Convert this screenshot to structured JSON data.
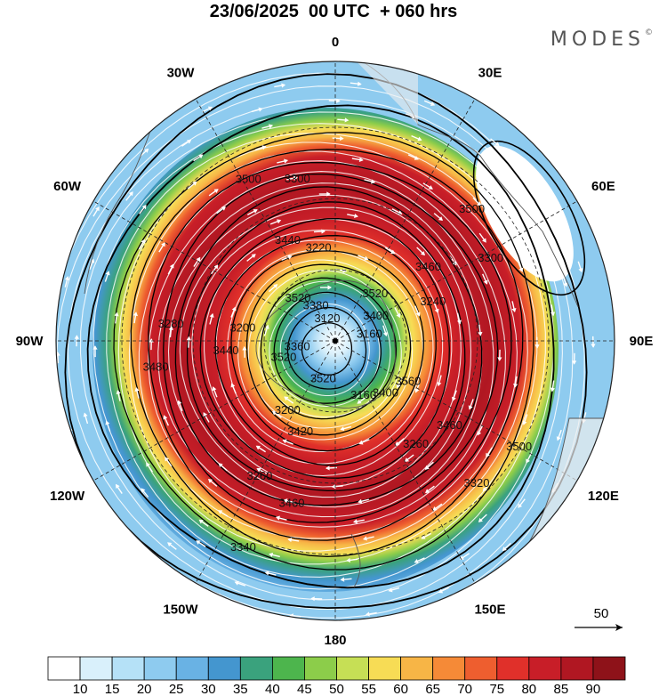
{
  "header": {
    "title": "23/06/2025  00 UTC  + 060 hrs",
    "brand": "MODES",
    "brand_mark": "©"
  },
  "map": {
    "projection": "south-polar-stereographic",
    "center_lon": 0,
    "longitude_labels": [
      {
        "deg": 0,
        "text": "0"
      },
      {
        "deg": 30,
        "text": "30E"
      },
      {
        "deg": 60,
        "text": "60E"
      },
      {
        "deg": 90,
        "text": "90E"
      },
      {
        "deg": 120,
        "text": "120E"
      },
      {
        "deg": 150,
        "text": "150E"
      },
      {
        "deg": 180,
        "text": "180"
      },
      {
        "deg": 210,
        "text": "150W"
      },
      {
        "deg": 240,
        "text": "120W"
      },
      {
        "deg": 270,
        "text": "90W"
      },
      {
        "deg": 300,
        "text": "60W"
      },
      {
        "deg": 330,
        "text": "30W"
      }
    ],
    "contour_labels": [
      "3120",
      "3160",
      "3160",
      "3200",
      "3200",
      "3220",
      "3240",
      "3260",
      "3260",
      "3280",
      "3300",
      "3300",
      "3320",
      "3340",
      "3360",
      "3380",
      "3400",
      "3400",
      "3420",
      "3440",
      "3440",
      "3460",
      "3460",
      "3460",
      "3480",
      "3500",
      "3500",
      "3500",
      "3520",
      "3520",
      "3520",
      "3520",
      "3560"
    ],
    "reference_vector": "50",
    "wind_direction": "clockwise",
    "colors": {
      "coast": "#555555",
      "grid": "#222222",
      "contour": "#000000",
      "streamline": "#ffffff",
      "land": "#eeeeee"
    }
  },
  "colorbar": {
    "labels": [
      "10",
      "15",
      "20",
      "25",
      "30",
      "35",
      "40",
      "45",
      "50",
      "55",
      "60",
      "65",
      "70",
      "75",
      "80",
      "85",
      "90"
    ],
    "colors": [
      "#ffffff",
      "#d9f0fb",
      "#b5e1f7",
      "#8ecbef",
      "#69b2e4",
      "#4496cf",
      "#3aa27d",
      "#4db54d",
      "#8ccd4a",
      "#c6df55",
      "#f7dc55",
      "#f7b546",
      "#f58a37",
      "#ee5e2f",
      "#e0302a",
      "#c81e28",
      "#b01722",
      "#8e1219"
    ]
  }
}
